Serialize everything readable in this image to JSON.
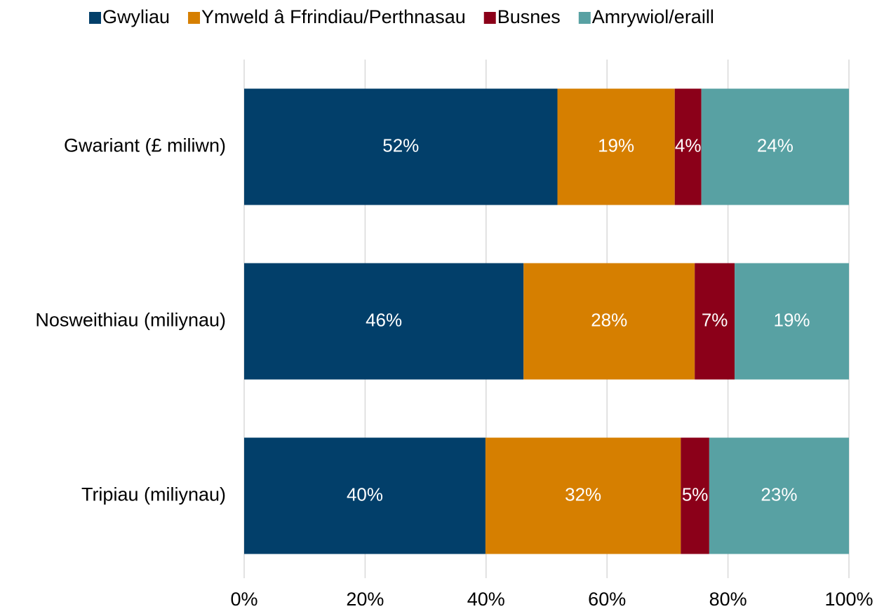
{
  "chart_data": {
    "type": "stacked_bar_horizontal",
    "categories": [
      "Gwariant (£ miliwn)",
      "Nosweithiau (miliynau)",
      "Tripiau (miliynau)"
    ],
    "series": [
      {
        "name": "Gwyliau",
        "color": "#023f6a",
        "values": [
          51.8,
          46.2,
          39.9
        ],
        "value_labels": [
          "52%",
          "46%",
          "40%"
        ]
      },
      {
        "name": "Ymweld â Ffrindiau/Perthnasau",
        "color": "#d67f00",
        "values": [
          19.4,
          28.3,
          32.3
        ],
        "value_labels": [
          "19%",
          "28%",
          "32%"
        ]
      },
      {
        "name": "Busnes",
        "color": "#8b0019",
        "values": [
          4.4,
          6.6,
          4.7
        ],
        "value_labels": [
          "4%",
          "7%",
          "5%"
        ]
      },
      {
        "name": "Amrywiol/eraill",
        "color": "#58a1a3",
        "values": [
          24.4,
          18.9,
          23.1
        ],
        "value_labels": [
          "24%",
          "19%",
          "23%"
        ]
      }
    ],
    "xlim": [
      0,
      100
    ],
    "xticks": [
      {
        "value": 0,
        "label": "0%"
      },
      {
        "value": 20,
        "label": "20%"
      },
      {
        "value": 40,
        "label": "40%"
      },
      {
        "value": 60,
        "label": "60%"
      },
      {
        "value": 80,
        "label": "80%"
      },
      {
        "value": 100,
        "label": "100%"
      }
    ],
    "grid": true,
    "legend": "top"
  }
}
